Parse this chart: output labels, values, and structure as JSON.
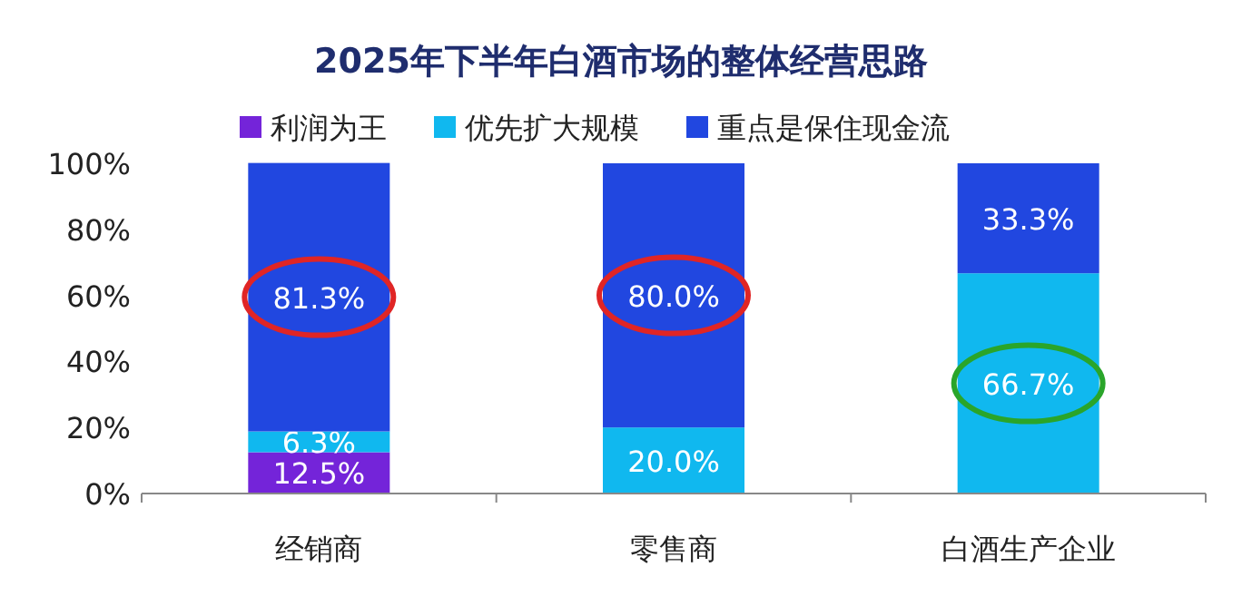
{
  "chart_data": {
    "type": "bar",
    "stacked": true,
    "title": "2025年下半年白酒市场的整体经营思路",
    "categories": [
      "经销商",
      "零售商",
      "白酒生产企业"
    ],
    "series": [
      {
        "name": "利润为王",
        "color": "#7424d9",
        "values": [
          12.5,
          0,
          0
        ],
        "value_labels": [
          "12.5%",
          null,
          null
        ]
      },
      {
        "name": "优先扩大规模",
        "color": "#10b8ef",
        "values": [
          6.3,
          20.0,
          66.7
        ],
        "value_labels": [
          "6.3%",
          "20.0%",
          "66.7%"
        ]
      },
      {
        "name": "重点是保住现金流",
        "color": "#2147e0",
        "values": [
          81.3,
          80.0,
          33.3
        ],
        "value_labels": [
          "81.3%",
          "80.0%",
          "33.3%"
        ]
      }
    ],
    "ylim": [
      0,
      100
    ],
    "yticks": [
      {
        "value": 0,
        "label": "0%"
      },
      {
        "value": 20,
        "label": "20%"
      },
      {
        "value": 40,
        "label": "40%"
      },
      {
        "value": 60,
        "label": "60%"
      },
      {
        "value": 80,
        "label": "80%"
      },
      {
        "value": 100,
        "label": "100%"
      }
    ],
    "legend": "top",
    "grid": false
  }
}
